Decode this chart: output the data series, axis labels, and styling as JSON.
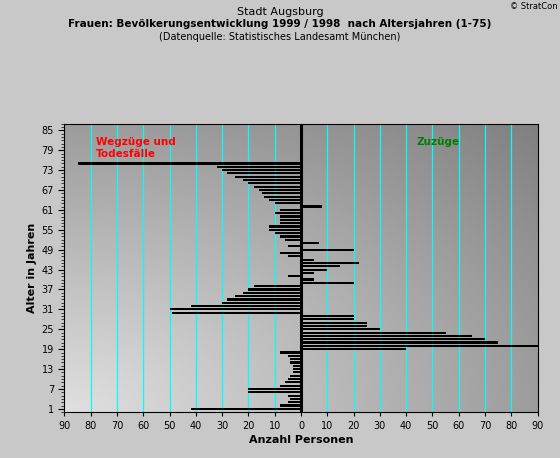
{
  "title_line1": "Stadt Augsburg",
  "title_line2": "Frauen: Bevölkerungsentwicklung 1999 / 1998  nach Altersjahren (1-75)",
  "title_line3": "(Datenquelle: Statistisches Landesamt München)",
  "xlabel": "Anzahl Personen",
  "ylabel": "Alter in Jahren",
  "copyright": "© StratCon",
  "label_left": "Wegzüge und\nTodesfälle",
  "label_right": "Zuzüge",
  "xlim_left": -90,
  "xlim_right": 90,
  "ylim_bottom": 0,
  "ylim_top": 87,
  "xticks": [
    -90,
    -80,
    -70,
    -60,
    -50,
    -40,
    -30,
    -20,
    -10,
    0,
    10,
    20,
    30,
    40,
    50,
    60,
    70,
    80,
    90
  ],
  "xticklabels": [
    "90",
    "80",
    "70",
    "60",
    "50",
    "40",
    "30",
    "20",
    "10",
    "0",
    "10",
    "20",
    "30",
    "40",
    "50",
    "60",
    "70",
    "80",
    "90"
  ],
  "yticks": [
    1,
    7,
    13,
    19,
    25,
    31,
    37,
    43,
    49,
    55,
    61,
    67,
    73,
    79,
    85
  ],
  "bar_color": "#000000",
  "cyan_color": "#00ffff",
  "values": {
    "1": -42,
    "2": -8,
    "3": -5,
    "4": -4,
    "5": -5,
    "6": -20,
    "7": -20,
    "8": -8,
    "9": -6,
    "10": -5,
    "11": -4,
    "12": -3,
    "13": -3,
    "14": -3,
    "15": -4,
    "16": -4,
    "17": -5,
    "18": -8,
    "19": 40,
    "20": 90,
    "21": 75,
    "22": 70,
    "23": 65,
    "24": 55,
    "25": 30,
    "26": 25,
    "27": 25,
    "28": 20,
    "29": 20,
    "30": -49,
    "31": -50,
    "32": -42,
    "33": -30,
    "34": -28,
    "35": -25,
    "36": -22,
    "37": -20,
    "38": -18,
    "39": 20,
    "40": 5,
    "41": -5,
    "42": 5,
    "43": 10,
    "44": 15,
    "45": 22,
    "46": 5,
    "47": -5,
    "48": -8,
    "49": 20,
    "50": -5,
    "51": 7,
    "52": -6,
    "53": -8,
    "54": -10,
    "55": -12,
    "56": -12,
    "57": -8,
    "58": -8,
    "59": -8,
    "60": -10,
    "61": -8,
    "62": 8,
    "63": -10,
    "64": -12,
    "65": -14,
    "66": -15,
    "67": -16,
    "68": -18,
    "69": -20,
    "70": -22,
    "71": -25,
    "72": -28,
    "73": -30,
    "74": -32,
    "75": -85
  }
}
